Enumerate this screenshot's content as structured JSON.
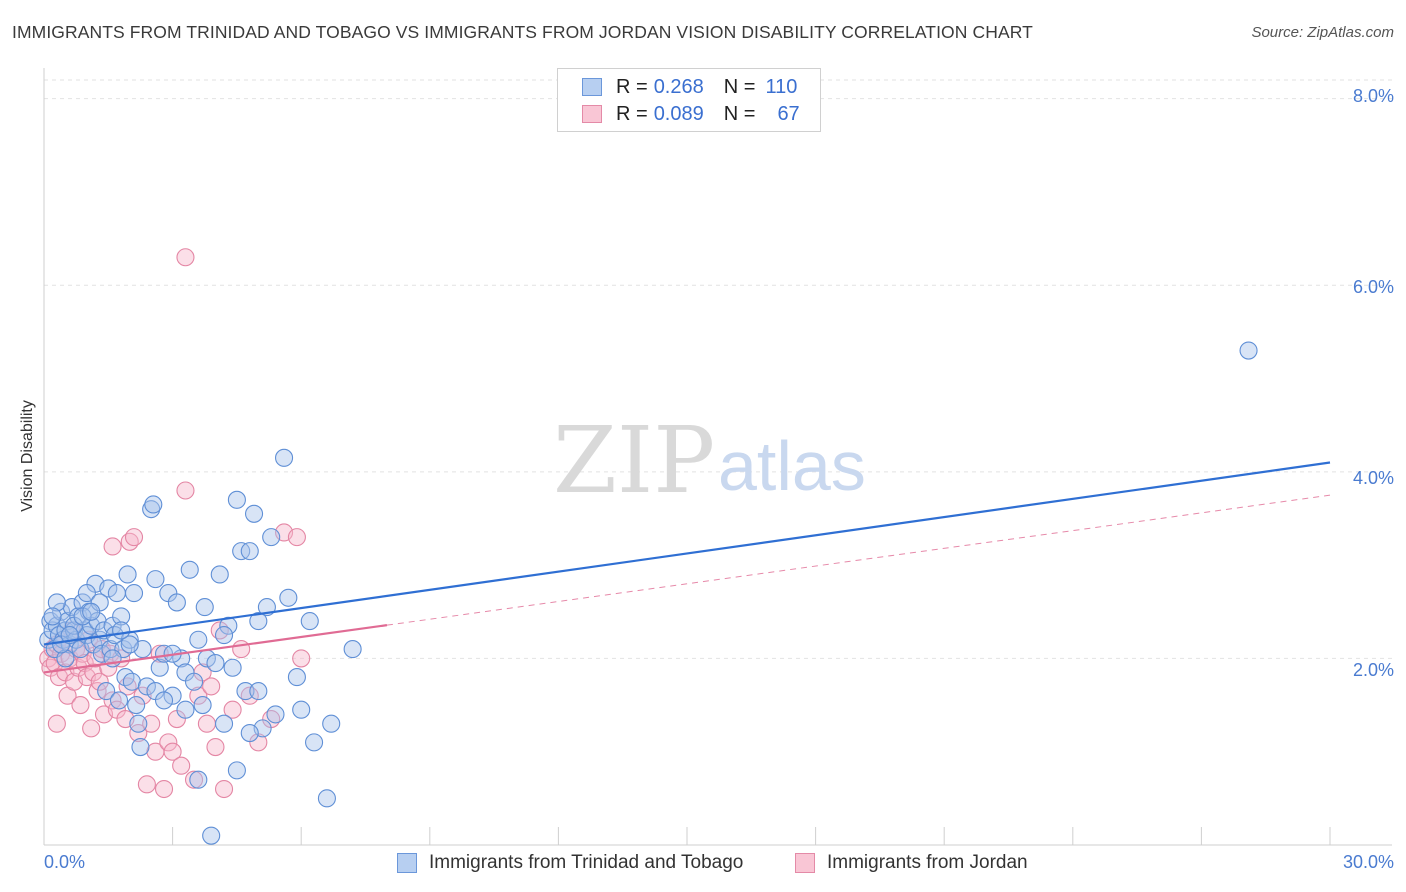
{
  "title": "IMMIGRANTS FROM TRINIDAD AND TOBAGO VS IMMIGRANTS FROM JORDAN VISION DISABILITY CORRELATION CHART",
  "source": "Source: ZipAtlas.com",
  "watermark": {
    "zip": "ZIP",
    "atlas": "atlas"
  },
  "legend_top": {
    "rows": [
      {
        "r_label": "R =",
        "r_value": "0.268",
        "n_label": "N =",
        "n_value": "110"
      },
      {
        "r_label": "R =",
        "r_value": "0.089",
        "n_label": "N =",
        "n_value": "67"
      }
    ]
  },
  "chart_data": {
    "type": "scatter",
    "title": "IMMIGRANTS FROM TRINIDAD AND TOBAGO VS IMMIGRANTS FROM JORDAN VISION DISABILITY CORRELATION CHART",
    "ylabel": "Vision Disability",
    "xlabel": "",
    "xlim": [
      0,
      30
    ],
    "ylim": [
      0,
      8.2
    ],
    "x_ticks": [
      "0.0%",
      "30.0%"
    ],
    "y_ticks": [
      {
        "value": 2,
        "label": "2.0%"
      },
      {
        "value": 4,
        "label": "4.0%"
      },
      {
        "value": 6,
        "label": "6.0%"
      },
      {
        "value": 8,
        "label": "8.0%"
      }
    ],
    "colors": {
      "blue_fill": "#a8c4ec",
      "blue_stroke": "#5f8fd6",
      "blue_line": "#2f6fd3",
      "pink_fill": "#f6b8cb",
      "pink_stroke": "#e486a4",
      "pink_line": "#e06b94"
    },
    "series": [
      {
        "name": "Immigrants from Trinidad and Tobago",
        "color": "blue",
        "trend": {
          "x0": 0,
          "y0": 2.15,
          "x1": 30,
          "y1": 4.1,
          "dashed_from": null
        },
        "points": [
          [
            0.1,
            2.2
          ],
          [
            0.15,
            2.4
          ],
          [
            0.2,
            2.3
          ],
          [
            0.25,
            2.1
          ],
          [
            0.3,
            2.35
          ],
          [
            0.35,
            2.25
          ],
          [
            0.4,
            2.5
          ],
          [
            0.45,
            2.2
          ],
          [
            0.5,
            2.3
          ],
          [
            0.55,
            2.4
          ],
          [
            0.6,
            2.15
          ],
          [
            0.65,
            2.55
          ],
          [
            0.7,
            2.3
          ],
          [
            0.75,
            2.2
          ],
          [
            0.8,
            2.45
          ],
          [
            0.85,
            2.1
          ],
          [
            0.9,
            2.6
          ],
          [
            0.95,
            2.3
          ],
          [
            1.0,
            2.25
          ],
          [
            1.05,
            2.5
          ],
          [
            1.1,
            2.35
          ],
          [
            1.15,
            2.15
          ],
          [
            1.2,
            2.8
          ],
          [
            1.25,
            2.4
          ],
          [
            1.3,
            2.2
          ],
          [
            1.35,
            2.05
          ],
          [
            1.4,
            2.3
          ],
          [
            1.45,
            1.65
          ],
          [
            1.5,
            2.75
          ],
          [
            1.55,
            2.1
          ],
          [
            1.6,
            2.35
          ],
          [
            1.65,
            2.25
          ],
          [
            1.7,
            2.7
          ],
          [
            1.75,
            1.55
          ],
          [
            1.8,
            2.45
          ],
          [
            1.85,
            2.1
          ],
          [
            1.9,
            1.8
          ],
          [
            1.95,
            2.9
          ],
          [
            2.0,
            2.2
          ],
          [
            2.05,
            1.75
          ],
          [
            2.1,
            2.7
          ],
          [
            2.15,
            1.5
          ],
          [
            2.2,
            1.3
          ],
          [
            2.25,
            1.05
          ],
          [
            2.3,
            2.1
          ],
          [
            2.4,
            1.7
          ],
          [
            2.5,
            3.6
          ],
          [
            2.55,
            3.65
          ],
          [
            2.6,
            2.85
          ],
          [
            2.7,
            1.9
          ],
          [
            2.8,
            2.05
          ],
          [
            2.9,
            2.7
          ],
          [
            3.0,
            1.6
          ],
          [
            3.1,
            2.6
          ],
          [
            3.2,
            2.0
          ],
          [
            3.3,
            1.85
          ],
          [
            3.4,
            2.95
          ],
          [
            3.5,
            1.75
          ],
          [
            3.6,
            0.7
          ],
          [
            3.7,
            1.5
          ],
          [
            3.75,
            2.55
          ],
          [
            3.8,
            2.0
          ],
          [
            3.9,
            0.1
          ],
          [
            4.0,
            1.95
          ],
          [
            4.1,
            2.9
          ],
          [
            4.2,
            1.3
          ],
          [
            4.3,
            2.35
          ],
          [
            4.4,
            1.9
          ],
          [
            4.5,
            0.8
          ],
          [
            4.6,
            3.15
          ],
          [
            4.7,
            1.65
          ],
          [
            4.8,
            3.15
          ],
          [
            4.9,
            3.55
          ],
          [
            5.0,
            1.65
          ],
          [
            5.1,
            1.25
          ],
          [
            5.2,
            2.55
          ],
          [
            5.3,
            3.3
          ],
          [
            5.4,
            1.4
          ],
          [
            5.6,
            4.15
          ],
          [
            5.7,
            2.65
          ],
          [
            5.9,
            1.8
          ],
          [
            6.2,
            2.4
          ],
          [
            6.3,
            1.1
          ],
          [
            6.6,
            0.5
          ],
          [
            6.7,
            1.3
          ],
          [
            7.2,
            2.1
          ],
          [
            0.3,
            2.6
          ],
          [
            0.5,
            2.0
          ],
          [
            1.0,
            2.7
          ],
          [
            4.5,
            3.7
          ],
          [
            5.0,
            2.4
          ],
          [
            0.2,
            2.45
          ],
          [
            0.7,
            2.35
          ],
          [
            1.3,
            2.6
          ],
          [
            2.0,
            2.15
          ],
          [
            3.0,
            2.05
          ],
          [
            3.6,
            2.2
          ],
          [
            4.2,
            2.25
          ],
          [
            0.4,
            2.15
          ],
          [
            0.9,
            2.45
          ],
          [
            1.6,
            2.0
          ],
          [
            2.6,
            1.65
          ],
          [
            3.3,
            1.45
          ],
          [
            0.6,
            2.25
          ],
          [
            1.1,
            2.5
          ],
          [
            1.8,
            2.3
          ],
          [
            2.8,
            1.55
          ],
          [
            4.8,
            1.2
          ],
          [
            6.0,
            1.45
          ],
          [
            28.1,
            5.3
          ]
        ]
      },
      {
        "name": "Immigrants from Jordan",
        "color": "pink",
        "trend": {
          "x0": 0,
          "y0": 1.85,
          "x1": 30,
          "y1": 3.75,
          "dashed_from": 8.0
        },
        "points": [
          [
            0.1,
            2.0
          ],
          [
            0.15,
            1.9
          ],
          [
            0.2,
            2.1
          ],
          [
            0.25,
            1.95
          ],
          [
            0.3,
            2.15
          ],
          [
            0.35,
            1.8
          ],
          [
            0.4,
            2.05
          ],
          [
            0.45,
            2.2
          ],
          [
            0.5,
            1.85
          ],
          [
            0.55,
            1.6
          ],
          [
            0.6,
            2.0
          ],
          [
            0.65,
            2.3
          ],
          [
            0.7,
            1.75
          ],
          [
            0.75,
            2.1
          ],
          [
            0.8,
            1.9
          ],
          [
            0.85,
            1.5
          ],
          [
            0.9,
            2.05
          ],
          [
            0.95,
            1.95
          ],
          [
            1.0,
            1.8
          ],
          [
            1.05,
            2.2
          ],
          [
            1.1,
            1.25
          ],
          [
            1.15,
            1.85
          ],
          [
            1.2,
            2.0
          ],
          [
            1.25,
            1.65
          ],
          [
            1.3,
            1.75
          ],
          [
            1.35,
            2.1
          ],
          [
            1.4,
            1.4
          ],
          [
            1.5,
            1.9
          ],
          [
            1.55,
            2.05
          ],
          [
            1.6,
            1.55
          ],
          [
            1.7,
            1.45
          ],
          [
            1.8,
            2.0
          ],
          [
            1.9,
            1.35
          ],
          [
            1.95,
            1.7
          ],
          [
            2.0,
            3.25
          ],
          [
            2.1,
            3.3
          ],
          [
            2.2,
            1.2
          ],
          [
            2.3,
            1.6
          ],
          [
            2.4,
            0.65
          ],
          [
            2.5,
            1.3
          ],
          [
            2.6,
            1.0
          ],
          [
            2.7,
            2.05
          ],
          [
            2.8,
            0.6
          ],
          [
            2.9,
            1.1
          ],
          [
            3.0,
            1.0
          ],
          [
            3.1,
            1.35
          ],
          [
            3.2,
            0.85
          ],
          [
            3.3,
            3.8
          ],
          [
            3.5,
            0.7
          ],
          [
            3.6,
            1.6
          ],
          [
            3.7,
            1.85
          ],
          [
            3.8,
            1.3
          ],
          [
            3.9,
            1.7
          ],
          [
            4.0,
            1.05
          ],
          [
            4.1,
            2.3
          ],
          [
            4.2,
            0.6
          ],
          [
            4.4,
            1.45
          ],
          [
            4.6,
            2.1
          ],
          [
            4.8,
            1.6
          ],
          [
            5.0,
            1.1
          ],
          [
            5.3,
            1.35
          ],
          [
            5.6,
            3.35
          ],
          [
            5.9,
            3.3
          ],
          [
            6.0,
            2.0
          ],
          [
            1.6,
            3.2
          ],
          [
            3.3,
            6.3
          ],
          [
            0.3,
            1.3
          ]
        ]
      }
    ]
  },
  "legend_bottom": [
    {
      "label": "Immigrants from Trinidad and Tobago"
    },
    {
      "label": "Immigrants from Jordan"
    }
  ]
}
